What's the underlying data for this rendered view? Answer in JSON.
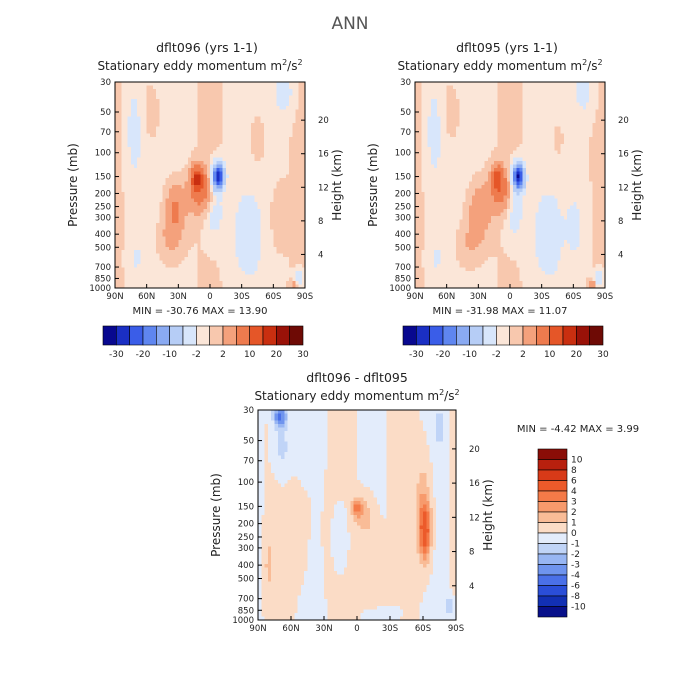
{
  "figure_title": "ANN",
  "chart_data": [
    {
      "type": "heatmap",
      "id": "p1",
      "title": "dflt096 (yrs 1-1)",
      "subtitle": "Stationary eddy momentum",
      "units_text": "m",
      "units_sup": "2",
      "units_slash": "/s",
      "units_sup2": "2",
      "xlabel": "",
      "ylabel": "Pressure (mb)",
      "ylabel_right": "Height (km)",
      "x_ticks": [
        "90N",
        "60N",
        "30N",
        "0",
        "30S",
        "60S",
        "90S"
      ],
      "x_values": [
        90,
        60,
        30,
        0,
        -30,
        -60,
        -90
      ],
      "y_ticks": [
        "30",
        "50",
        "70",
        "100",
        "150",
        "200",
        "250",
        "300",
        "400",
        "500",
        "700",
        "850",
        "1000"
      ],
      "y_values": [
        30,
        50,
        70,
        100,
        150,
        200,
        250,
        300,
        400,
        500,
        700,
        850,
        1000
      ],
      "height_ticks": [
        "4",
        "8",
        "12",
        "16",
        "20"
      ],
      "height_values": [
        4,
        8,
        12,
        16,
        20
      ],
      "stats_text": "MIN = -30.76   MAX =  13.90",
      "min": -30.76,
      "max": 13.9,
      "features": [
        {
          "lat": 12,
          "p": 155,
          "value": 14,
          "wlat": 6,
          "wp": 0.22
        },
        {
          "lat": 8,
          "p": 200,
          "value": 7,
          "wlat": 12,
          "wp": 0.35
        },
        {
          "lat": -8,
          "p": 150,
          "value": -30,
          "wlat": 5,
          "wp": 0.2
        },
        {
          "lat": -4,
          "p": 260,
          "value": -4,
          "wlat": 9,
          "wp": 0.5
        },
        {
          "lat": 33,
          "p": 260,
          "value": 6,
          "wlat": 10,
          "wp": 0.45
        },
        {
          "lat": 38,
          "p": 450,
          "value": 3,
          "wlat": 12,
          "wp": 0.4
        },
        {
          "lat": 72,
          "p": 70,
          "value": -3,
          "wlat": 8,
          "wp": 0.9
        },
        {
          "lat": 55,
          "p": 50,
          "value": 1.5,
          "wlat": 10,
          "wp": 0.6
        },
        {
          "lat": -70,
          "p": 35,
          "value": -4,
          "wlat": 8,
          "wp": 0.35
        },
        {
          "lat": -45,
          "p": 80,
          "value": 1.5,
          "wlat": 10,
          "wp": 0.6
        },
        {
          "lat": -35,
          "p": 400,
          "value": -3,
          "wlat": 14,
          "wp": 0.7
        },
        {
          "lat": -65,
          "p": 300,
          "value": 2,
          "wlat": 8,
          "wp": 0.5
        },
        {
          "lat": -84,
          "p": 850,
          "value": -6,
          "wlat": 4,
          "wp": 0.12
        },
        {
          "lat": -80,
          "p": 950,
          "value": 4,
          "wlat": 4,
          "wp": 0.08
        },
        {
          "lat": 70,
          "p": 600,
          "value": -2,
          "wlat": 8,
          "wp": 0.4
        }
      ],
      "colorbar": {
        "orientation": "horizontal",
        "levels": [
          "-30",
          "-20",
          "-10",
          "-2",
          "2",
          "10",
          "20",
          "30"
        ],
        "colors": [
          "#08088f",
          "#1a2fc4",
          "#3a5de8",
          "#5f86f0",
          "#8aaaf2",
          "#b6cdf6",
          "#d8e6fb",
          "#fbe6d8",
          "#f8c8ae",
          "#f4a17c",
          "#ee7b4e",
          "#e55628",
          "#c92f10",
          "#9a1208",
          "#6e0a05"
        ]
      }
    },
    {
      "type": "heatmap",
      "id": "p2",
      "title": "dflt095 (yrs 1-1)",
      "subtitle": "Stationary eddy momentum",
      "units_text": "m",
      "units_sup": "2",
      "units_slash": "/s",
      "units_sup2": "2",
      "xlabel": "",
      "ylabel": "Pressure (mb)",
      "ylabel_right": "Height (km)",
      "x_ticks": [
        "90N",
        "60N",
        "30N",
        "0",
        "30S",
        "60S",
        "90S"
      ],
      "x_values": [
        90,
        60,
        30,
        0,
        -30,
        -60,
        -90
      ],
      "y_ticks": [
        "30",
        "50",
        "70",
        "100",
        "150",
        "200",
        "250",
        "300",
        "400",
        "500",
        "700",
        "850",
        "1000"
      ],
      "y_values": [
        30,
        50,
        70,
        100,
        150,
        200,
        250,
        300,
        400,
        500,
        700,
        850,
        1000
      ],
      "height_ticks": [
        "4",
        "8",
        "12",
        "16",
        "20"
      ],
      "height_values": [
        4,
        8,
        12,
        16,
        20
      ],
      "stats_text": "MIN = -31.98   MAX =  11.07",
      "min": -31.98,
      "max": 11.07,
      "features": [
        {
          "lat": 12,
          "p": 155,
          "value": 11,
          "wlat": 6,
          "wp": 0.22
        },
        {
          "lat": 8,
          "p": 200,
          "value": 6,
          "wlat": 12,
          "wp": 0.35
        },
        {
          "lat": -8,
          "p": 150,
          "value": -31,
          "wlat": 5,
          "wp": 0.2
        },
        {
          "lat": -4,
          "p": 260,
          "value": -4,
          "wlat": 9,
          "wp": 0.5
        },
        {
          "lat": 30,
          "p": 280,
          "value": 5,
          "wlat": 11,
          "wp": 0.5
        },
        {
          "lat": 40,
          "p": 500,
          "value": 2.5,
          "wlat": 12,
          "wp": 0.4
        },
        {
          "lat": 72,
          "p": 70,
          "value": -3,
          "wlat": 8,
          "wp": 0.9
        },
        {
          "lat": 55,
          "p": 50,
          "value": 1.5,
          "wlat": 10,
          "wp": 0.6
        },
        {
          "lat": -70,
          "p": 35,
          "value": -3.5,
          "wlat": 8,
          "wp": 0.35
        },
        {
          "lat": -45,
          "p": 80,
          "value": 1.2,
          "wlat": 10,
          "wp": 0.6
        },
        {
          "lat": -35,
          "p": 400,
          "value": -3,
          "wlat": 14,
          "wp": 0.7
        },
        {
          "lat": -62,
          "p": 350,
          "value": -2.5,
          "wlat": 8,
          "wp": 0.5
        },
        {
          "lat": -84,
          "p": 850,
          "value": -6,
          "wlat": 4,
          "wp": 0.12
        },
        {
          "lat": -78,
          "p": 950,
          "value": 5,
          "wlat": 4,
          "wp": 0.08
        },
        {
          "lat": 70,
          "p": 600,
          "value": -2,
          "wlat": 8,
          "wp": 0.4
        }
      ],
      "colorbar": {
        "orientation": "horizontal",
        "levels": [
          "-30",
          "-20",
          "-10",
          "-2",
          "2",
          "10",
          "20",
          "30"
        ],
        "colors": [
          "#08088f",
          "#1a2fc4",
          "#3a5de8",
          "#5f86f0",
          "#8aaaf2",
          "#b6cdf6",
          "#d8e6fb",
          "#fbe6d8",
          "#f8c8ae",
          "#f4a17c",
          "#ee7b4e",
          "#e55628",
          "#c92f10",
          "#9a1208",
          "#6e0a05"
        ]
      }
    },
    {
      "type": "heatmap",
      "id": "p3",
      "title": "dflt096 - dflt095",
      "subtitle": "Stationary eddy momentum",
      "units_text": "m",
      "units_sup": "2",
      "units_slash": "/s",
      "units_sup2": "2",
      "xlabel": "",
      "ylabel": "Pressure (mb)",
      "ylabel_right": "Height (km)",
      "x_ticks": [
        "90N",
        "60N",
        "30N",
        "0",
        "30S",
        "60S",
        "90S"
      ],
      "x_values": [
        90,
        60,
        30,
        0,
        -30,
        -60,
        -90
      ],
      "y_ticks": [
        "30",
        "50",
        "70",
        "100",
        "150",
        "200",
        "250",
        "300",
        "400",
        "500",
        "700",
        "850",
        "1000"
      ],
      "y_values": [
        30,
        50,
        70,
        100,
        150,
        200,
        250,
        300,
        400,
        500,
        700,
        850,
        1000
      ],
      "height_ticks": [
        "4",
        "8",
        "12",
        "16",
        "20"
      ],
      "height_values": [
        4,
        8,
        12,
        16,
        20
      ],
      "stats_text": "MIN =   -4.42   MAX =    3.99",
      "min": -4.42,
      "max": 3.99,
      "features": [
        {
          "lat": 70,
          "p": 33,
          "value": -4.4,
          "wlat": 6,
          "wp": 0.18
        },
        {
          "lat": 68,
          "p": 55,
          "value": -1.5,
          "wlat": 8,
          "wp": 0.5
        },
        {
          "lat": -62,
          "p": 230,
          "value": 4,
          "wlat": 5,
          "wp": 0.45
        },
        {
          "lat": -60,
          "p": 160,
          "value": 2,
          "wlat": 7,
          "wp": 0.8
        },
        {
          "lat": 0,
          "p": 155,
          "value": 3,
          "wlat": 5,
          "wp": 0.16
        },
        {
          "lat": -8,
          "p": 180,
          "value": 1.6,
          "wlat": 9,
          "wp": 0.35
        },
        {
          "lat": -20,
          "p": 500,
          "value": 0.8,
          "wlat": 16,
          "wp": 0.6
        },
        {
          "lat": 50,
          "p": 250,
          "value": 0.8,
          "wlat": 14,
          "wp": 0.7
        },
        {
          "lat": 40,
          "p": 400,
          "value": -1,
          "wlat": 5,
          "wp": 0.6
        },
        {
          "lat": 80,
          "p": 400,
          "value": 1.2,
          "wlat": 5,
          "wp": 0.5
        },
        {
          "lat": 15,
          "p": 250,
          "value": -1.2,
          "wlat": 6,
          "wp": 0.5
        },
        {
          "lat": -75,
          "p": 40,
          "value": -1.5,
          "wlat": 5,
          "wp": 0.3
        },
        {
          "lat": -84,
          "p": 800,
          "value": -2,
          "wlat": 4,
          "wp": 0.15
        },
        {
          "lat": -30,
          "p": 900,
          "value": -0.8,
          "wlat": 12,
          "wp": 0.15
        }
      ],
      "colorbar": {
        "orientation": "vertical",
        "levels": [
          "10",
          "8",
          "6",
          "4",
          "3",
          "2",
          "1",
          "0",
          "-1",
          "-2",
          "-3",
          "-4",
          "-6",
          "-8",
          "-10"
        ],
        "colors": [
          "#8a0d07",
          "#b8200e",
          "#d83a18",
          "#ec5a2a",
          "#f47a48",
          "#f79a6c",
          "#f9bc97",
          "#fbdcc6",
          "#e3ecfb",
          "#c0d4f7",
          "#98b6f3",
          "#6f94ee",
          "#4a70e8",
          "#2a4ed8",
          "#1230b4",
          "#08108a"
        ]
      }
    }
  ]
}
